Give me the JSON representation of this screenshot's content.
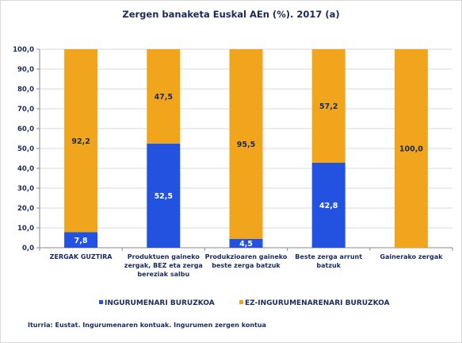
{
  "chart_data": {
    "type": "bar",
    "stacked": true,
    "title": "Zergen banaketa Euskal AEn (%).  2017 (a)",
    "categories": [
      "ZERGAK GUZTIRA",
      "Produktuen gaineko zergak, BEZ eta zerga bereziak salbu",
      "Produkzioaren gaineko beste zerga batzuk",
      "Beste zerga arrunt batzuk",
      "Gainerako zergak"
    ],
    "series": [
      {
        "name": "INGURUMENARI BURUZKOA",
        "color": "#2352e0",
        "values": [
          7.8,
          52.5,
          4.5,
          42.8,
          0.0
        ]
      },
      {
        "name": "EZ-INGURUMENARENARI BURUZKOA",
        "color": "#f0a51c",
        "values": [
          92.2,
          47.5,
          95.5,
          57.2,
          100.0
        ]
      }
    ],
    "data_labels": [
      [
        "7,8",
        "52,5",
        "4,5",
        "42,8",
        null
      ],
      [
        "92,2",
        "47,5",
        "95,5",
        "57,2",
        "100,0"
      ]
    ],
    "ylim": [
      0,
      100
    ],
    "yticks": [
      "0,0",
      "10,0",
      "20,0",
      "30,0",
      "40,0",
      "50,0",
      "60,0",
      "70,0",
      "80,0",
      "90,0",
      "100,0"
    ],
    "ytick_values": [
      0,
      10,
      20,
      30,
      40,
      50,
      60,
      70,
      80,
      90,
      100
    ],
    "grid": true,
    "legend_position": "bottom"
  },
  "source": "Iturria: Eustat. Ingurumenaren kontuak. Ingurumen zergen kontua"
}
